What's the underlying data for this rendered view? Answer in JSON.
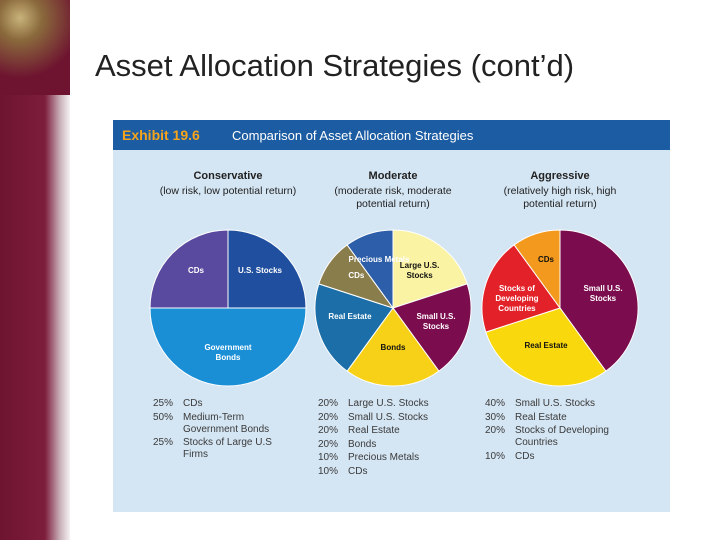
{
  "slide_title": "Asset Allocation Strategies (cont’d)",
  "exhibit": {
    "label": "Exhibit 19.6",
    "title": "Comparison of Asset Allocation Strategies"
  },
  "chart_data": [
    {
      "type": "pie",
      "title": "Conservative",
      "subtitle": "(low risk, low potential return)",
      "categories": [
        "U.S. Stocks",
        "Government Bonds",
        "CDs"
      ],
      "legend_labels": [
        "Stocks of Large U.S Firms",
        "Medium-Term Government Bonds",
        "CDs"
      ],
      "values": [
        25,
        50,
        25
      ],
      "value_labels": [
        "25%",
        "50%",
        "25%"
      ],
      "colors": [
        "#1f4f9e",
        "#1a8fd6",
        "#5a4a9f"
      ]
    },
    {
      "type": "pie",
      "title": "Moderate",
      "subtitle": "(moderate risk, moderate potential return)",
      "categories": [
        "Large U.S. Stocks",
        "Small U.S. Stocks",
        "Bonds",
        "Real Estate",
        "CDs",
        "Precious Metals"
      ],
      "legend_labels": [
        "Large U.S. Stocks",
        "Small U.S. Stocks",
        "Bonds",
        "Real Estate",
        "CDs",
        "Precious Metals"
      ],
      "values": [
        20,
        20,
        20,
        20,
        10,
        10
      ],
      "value_labels": [
        "20%",
        "20%",
        "20%",
        "20%",
        "10%",
        "10%"
      ],
      "colors": [
        "#faf3a3",
        "#7b0d4e",
        "#f7d117",
        "#1b6ea8",
        "#8a7d4c",
        "#2d5ea9"
      ]
    },
    {
      "type": "pie",
      "title": "Aggressive",
      "subtitle": "(relatively high risk, high potential return)",
      "categories": [
        "Small U.S. Stocks",
        "Real Estate",
        "Stocks of Developing Countries",
        "CDs"
      ],
      "legend_labels": [
        "Small U.S. Stocks",
        "Real Estate",
        "Stocks of Developing Countries",
        "CDs"
      ],
      "values": [
        40,
        30,
        20,
        10
      ],
      "value_labels": [
        "40%",
        "30%",
        "20%",
        "10%"
      ],
      "colors": [
        "#7b0d4e",
        "#f9d90d",
        "#e32128",
        "#f39a1e"
      ]
    }
  ]
}
